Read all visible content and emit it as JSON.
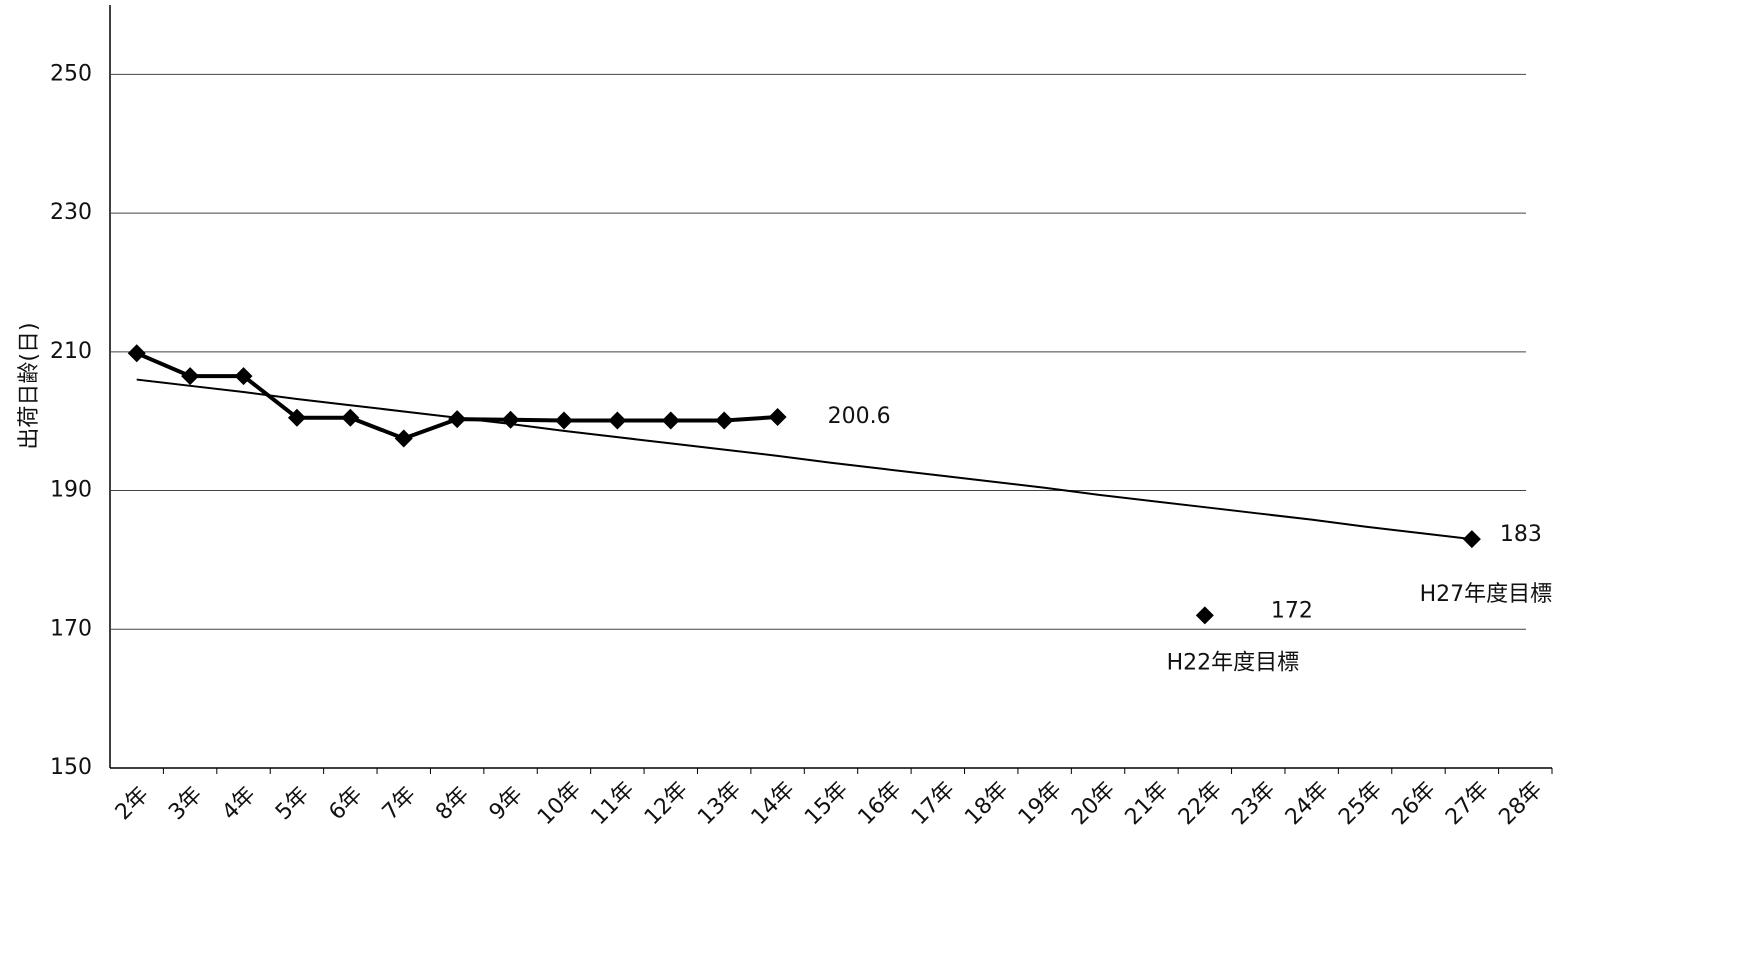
{
  "chart_data": {
    "type": "line",
    "y_label": "出荷日齢(日)",
    "categories": [
      "2年",
      "3年",
      "4年",
      "5年",
      "6年",
      "7年",
      "8年",
      "9年",
      "10年",
      "11年",
      "12年",
      "13年",
      "14年",
      "15年",
      "16年",
      "17年",
      "18年",
      "19年",
      "20年",
      "21年",
      "22年",
      "23年",
      "24年",
      "25年",
      "26年",
      "27年",
      "28年"
    ],
    "series": [
      {
        "color": "#000000",
        "marker": "diamond",
        "line": true,
        "values": [
          209.8,
          206.5,
          206.5,
          200.5,
          200.5,
          197.5,
          200.3,
          200.2,
          200.1,
          200.1,
          200.1,
          200.1,
          200.6,
          null,
          null,
          null,
          null,
          null,
          null,
          null,
          null,
          null,
          null,
          null,
          null,
          null,
          null
        ]
      },
      {
        "color": "#000000",
        "marker": "diamond",
        "line": false,
        "values": [
          null,
          null,
          null,
          null,
          null,
          null,
          null,
          null,
          null,
          null,
          null,
          null,
          null,
          null,
          null,
          null,
          null,
          null,
          null,
          null,
          172,
          null,
          null,
          null,
          null,
          183,
          null
        ]
      },
      {
        "color": "#000000",
        "marker": "none",
        "line": true,
        "values": [
          206.0,
          205.1,
          204.2,
          203.2,
          202.3,
          201.4,
          200.5,
          199.6,
          198.6,
          197.7,
          196.8,
          195.9,
          195.0,
          194.0,
          193.1,
          192.2,
          191.3,
          190.4,
          189.4,
          188.5,
          187.6,
          186.7,
          185.8,
          184.8,
          183.9,
          183.0,
          null
        ]
      }
    ],
    "annotations": [
      "H22年度目標",
      "H27年度目標"
    ],
    "ylim": [
      150,
      260
    ],
    "yticks": [
      150,
      170,
      190,
      210,
      230,
      250
    ],
    "grid": true
  }
}
